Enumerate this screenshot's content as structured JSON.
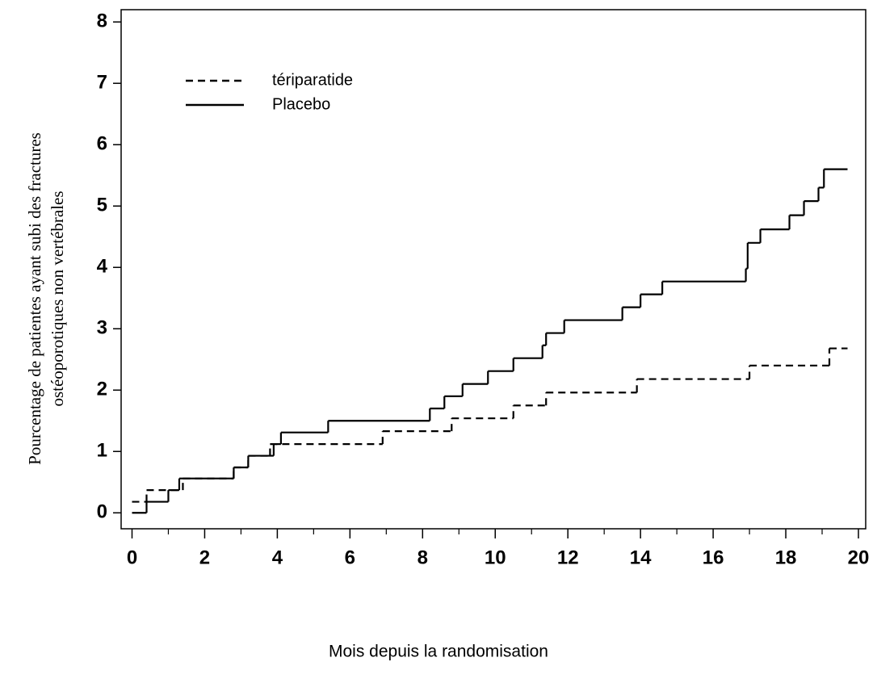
{
  "chart_data": {
    "type": "line",
    "step": "post",
    "x_label": "Mois depuis la randomisation",
    "y_label": [
      "Pourcentage de patientes ayant subi des fractures",
      "ostéoporotiques non vertébrales"
    ],
    "xlim": [
      -0.3,
      20.2
    ],
    "ylim": [
      -0.26,
      8.2
    ],
    "xticks": [
      0,
      2,
      4,
      6,
      8,
      10,
      12,
      14,
      16,
      18,
      20
    ],
    "yticks": [
      0,
      1,
      2,
      3,
      4,
      5,
      6,
      7,
      8
    ],
    "legend": "upper left",
    "grid": false,
    "series": [
      {
        "name": "tériparatide",
        "color": "#000000",
        "line_style": "dashed",
        "x": [
          0,
          0.4,
          1.4,
          2.8,
          3.2,
          3.8,
          6.9,
          8.8,
          10.5,
          11.4,
          13.9,
          17.0,
          19.2,
          19.7
        ],
        "values": [
          0.18,
          0.37,
          0.56,
          0.74,
          0.93,
          1.12,
          1.33,
          1.54,
          1.75,
          1.96,
          2.18,
          2.4,
          2.68,
          2.68
        ]
      },
      {
        "name": "Placebo",
        "color": "#000000",
        "line_style": "solid",
        "x": [
          0,
          0.4,
          1.0,
          1.3,
          2.8,
          3.2,
          3.9,
          4.1,
          5.4,
          8.2,
          8.6,
          9.1,
          9.8,
          10.5,
          11.3,
          11.4,
          11.9,
          13.5,
          14.0,
          14.6,
          16.9,
          16.95,
          17.3,
          18.1,
          18.5,
          18.9,
          19.05,
          19.7
        ],
        "values": [
          0,
          0.18,
          0.37,
          0.56,
          0.74,
          0.93,
          1.12,
          1.31,
          1.5,
          1.7,
          1.9,
          2.1,
          2.31,
          2.52,
          2.73,
          2.93,
          3.14,
          3.35,
          3.56,
          3.77,
          3.98,
          4.4,
          4.62,
          4.85,
          5.08,
          5.3,
          5.6,
          5.6
        ]
      }
    ]
  }
}
